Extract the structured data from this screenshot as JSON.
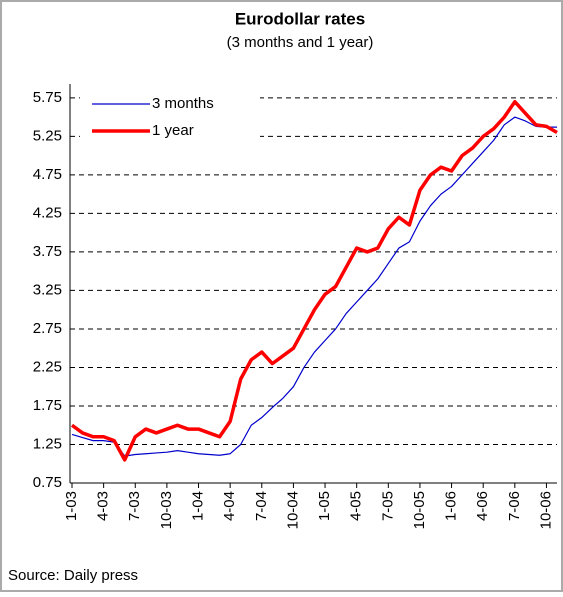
{
  "chart_data": {
    "type": "line",
    "title": "Eurodollar rates",
    "subtitle": "(3 months and 1 year)",
    "source": "Source: Daily press",
    "categories": [
      "1-03",
      null,
      null,
      "4-03",
      null,
      null,
      "7-03",
      null,
      null,
      "10-03",
      null,
      null,
      "1-04",
      null,
      null,
      "4-04",
      null,
      null,
      "7-04",
      null,
      null,
      "10-04",
      null,
      null,
      "1-05",
      null,
      null,
      "4-05",
      null,
      null,
      "7-05",
      null,
      null,
      "10-05",
      null,
      null,
      "1-06",
      null,
      null,
      "4-06",
      null,
      null,
      "7-06",
      null,
      null,
      "10-06",
      null
    ],
    "series": [
      {
        "name": "3 months",
        "color": "#0000cc",
        "values": [
          1.38,
          1.34,
          1.3,
          1.3,
          1.28,
          1.1,
          1.12,
          1.13,
          1.14,
          1.15,
          1.17,
          1.15,
          1.13,
          1.12,
          1.11,
          1.13,
          1.25,
          1.5,
          1.6,
          1.73,
          1.85,
          2.0,
          2.25,
          2.45,
          2.6,
          2.75,
          2.95,
          3.1,
          3.25,
          3.4,
          3.6,
          3.8,
          3.88,
          4.15,
          4.35,
          4.5,
          4.6,
          4.75,
          4.9,
          5.05,
          5.2,
          5.4,
          5.5,
          5.45,
          5.38,
          5.37,
          5.37
        ]
      },
      {
        "name": "1 year",
        "color": "#ff0000",
        "values": [
          1.5,
          1.4,
          1.35,
          1.35,
          1.3,
          1.05,
          1.35,
          1.45,
          1.4,
          1.45,
          1.5,
          1.45,
          1.45,
          1.4,
          1.35,
          1.55,
          2.1,
          2.35,
          2.45,
          2.3,
          2.4,
          2.5,
          2.75,
          3.0,
          3.2,
          3.3,
          3.55,
          3.8,
          3.75,
          3.8,
          4.05,
          4.2,
          4.1,
          4.55,
          4.75,
          4.85,
          4.8,
          5.0,
          5.1,
          5.25,
          5.35,
          5.5,
          5.7,
          5.55,
          5.4,
          5.38,
          5.3
        ]
      }
    ],
    "ylim": [
      0.75,
      5.93
    ],
    "yticks": [
      0.75,
      1.25,
      1.75,
      2.25,
      2.75,
      3.25,
      3.75,
      4.25,
      4.75,
      5.25,
      5.75
    ],
    "grid": true,
    "legend": "upper left"
  }
}
